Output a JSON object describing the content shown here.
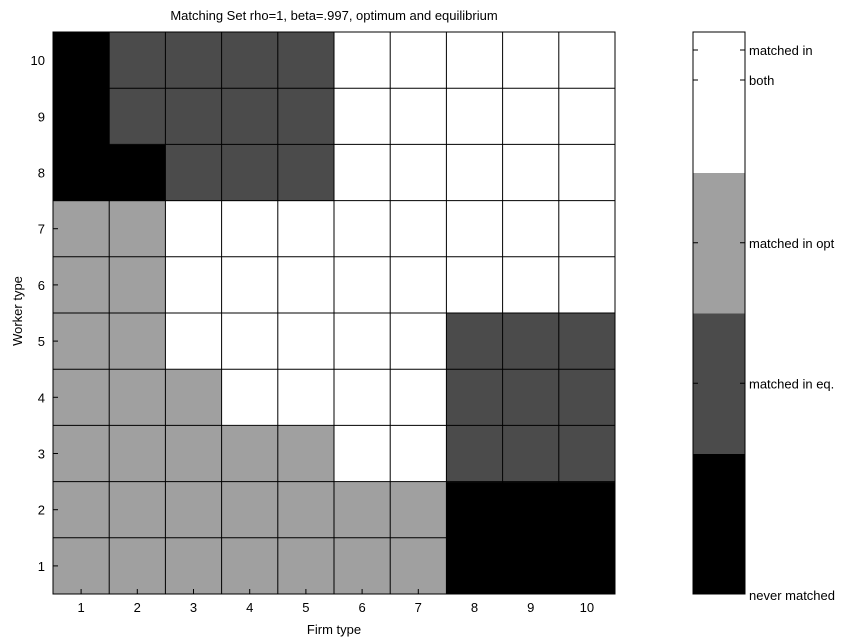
{
  "chart_data": {
    "type": "heatmap",
    "title": "Matching Set rho=1, beta=.997, optimum and equilibrium",
    "xlabel": "Firm type",
    "ylabel": "Worker type",
    "x_categories": [
      1,
      2,
      3,
      4,
      5,
      6,
      7,
      8,
      9,
      10
    ],
    "y_categories": [
      1,
      2,
      3,
      4,
      5,
      6,
      7,
      8,
      9,
      10
    ],
    "grid": true,
    "legend": {
      "placement": "right",
      "entries": [
        {
          "value": 0,
          "label": "never matched",
          "color": "#000000"
        },
        {
          "value": 1,
          "label": "matched in eq.",
          "color": "#4b4b4b"
        },
        {
          "value": 2,
          "label": "matched in opt",
          "color": "#a0a0a0"
        },
        {
          "value": 3,
          "label": "matched in both",
          "label_lines": [
            "matched in",
            "both"
          ],
          "color": "#ffffff"
        }
      ]
    },
    "matrix_note": "rows indexed by worker type 1..10 (bottom to top), columns by firm type 1..10",
    "values": [
      [
        2,
        2,
        2,
        2,
        2,
        2,
        2,
        0,
        0,
        0
      ],
      [
        2,
        2,
        2,
        2,
        2,
        2,
        2,
        0,
        0,
        0
      ],
      [
        2,
        2,
        2,
        2,
        2,
        3,
        3,
        1,
        1,
        1
      ],
      [
        2,
        2,
        2,
        3,
        3,
        3,
        3,
        1,
        1,
        1
      ],
      [
        2,
        2,
        3,
        3,
        3,
        3,
        3,
        1,
        1,
        1
      ],
      [
        2,
        2,
        3,
        3,
        3,
        3,
        3,
        3,
        3,
        3
      ],
      [
        2,
        2,
        3,
        3,
        3,
        3,
        3,
        3,
        3,
        3
      ],
      [
        0,
        0,
        1,
        1,
        1,
        3,
        3,
        3,
        3,
        3
      ],
      [
        0,
        1,
        1,
        1,
        1,
        3,
        3,
        3,
        3,
        3
      ],
      [
        0,
        1,
        1,
        1,
        1,
        3,
        3,
        3,
        3,
        3
      ]
    ]
  }
}
